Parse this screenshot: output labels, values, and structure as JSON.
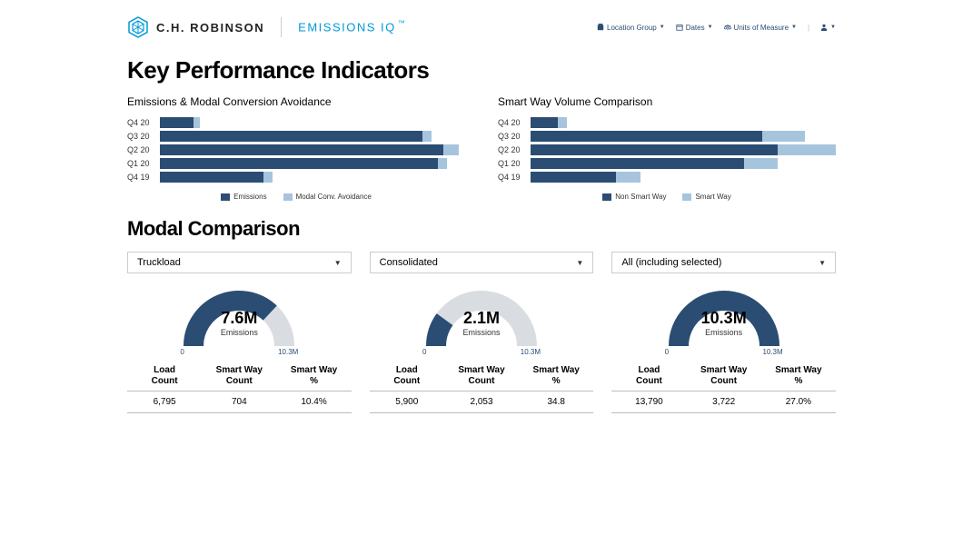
{
  "header": {
    "brand_name": "C.H. ROBINSON",
    "product_name": "EMISSIONS IQ",
    "tm": "™",
    "logo_color": "#0099d8",
    "nav": [
      {
        "label": "Location Group",
        "icon": "building"
      },
      {
        "label": "Dates",
        "icon": "calendar"
      },
      {
        "label": "Units of Measure",
        "icon": "balance"
      }
    ]
  },
  "kpi_title": "Key Performance Indicators",
  "colors": {
    "primary": "#2b4d73",
    "secondary": "#a7c4dd",
    "gauge_bg": "#d9dde1",
    "text": "#333333"
  },
  "chart_left": {
    "title": "Emissions & Modal Conversion Avoidance",
    "max": 100,
    "categories": [
      "Q4 20",
      "Q3 20",
      "Q2 20",
      "Q1 20",
      "Q4 19"
    ],
    "series1": [
      11,
      86,
      93,
      91,
      34
    ],
    "series2": [
      2,
      3,
      5,
      3,
      3
    ],
    "series1_label": "Emissions",
    "series2_label": "Modal Conv. Avoidance",
    "series1_color": "#2b4d73",
    "series2_color": "#a7c4dd"
  },
  "chart_right": {
    "title": "Smart Way Volume Comparison",
    "max": 100,
    "categories": [
      "Q4 20",
      "Q3 20",
      "Q2 20",
      "Q1 20",
      "Q4 19"
    ],
    "series1": [
      9,
      76,
      81,
      70,
      28
    ],
    "series2": [
      3,
      14,
      19,
      11,
      8
    ],
    "series1_label": "Non Smart Way",
    "series2_label": "Smart Way",
    "series1_color": "#2b4d73",
    "series2_color": "#a7c4dd"
  },
  "modal_title": "Modal Comparison",
  "modal_cols": [
    {
      "dropdown": "Truckload",
      "gauge": {
        "value": "7.6M",
        "label": "Emissions",
        "min": "0",
        "max": "10.3M",
        "pct": 0.74,
        "fill": "#2b4d73",
        "bg": "#d9dde1"
      },
      "stats": {
        "load_count": "6,795",
        "sw_count": "704",
        "sw_pct": "10.4%"
      }
    },
    {
      "dropdown": "Consolidated",
      "gauge": {
        "value": "2.1M",
        "label": "Emissions",
        "min": "0",
        "max": "10.3M",
        "pct": 0.2,
        "fill": "#2b4d73",
        "bg": "#d9dde1"
      },
      "stats": {
        "load_count": "5,900",
        "sw_count": "2,053",
        "sw_pct": "34.8"
      }
    },
    {
      "dropdown": "All (including selected)",
      "gauge": {
        "value": "10.3M",
        "label": "Emissions",
        "min": "0",
        "max": "10.3M",
        "pct": 1.0,
        "fill": "#2b4d73",
        "bg": "#d9dde1"
      },
      "stats": {
        "load_count": "13,790",
        "sw_count": "3,722",
        "sw_pct": "27.0%"
      }
    }
  ],
  "stats_headers": {
    "load_count": "Load Count",
    "sw_count": "Smart Way Count",
    "sw_pct": "Smart Way %"
  }
}
